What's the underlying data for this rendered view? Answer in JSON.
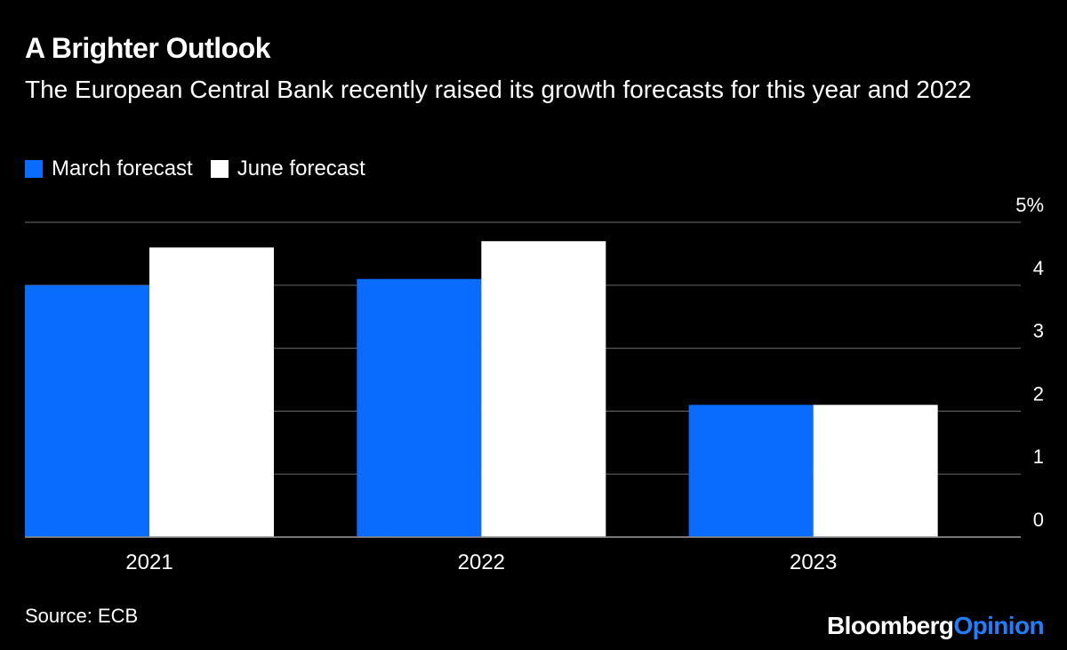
{
  "header": {
    "title": "A Brighter Outlook",
    "subtitle": "The European Central Bank recently raised its growth forecasts for this year and 2022"
  },
  "footer": {
    "source": "Source: ECB",
    "brand_part1": "Bloomberg",
    "brand_part2": "Opinion"
  },
  "colors": {
    "background": "#000000",
    "march": "#0a6cff",
    "june": "#ffffff",
    "grid": "#5a5a5a",
    "brand_accent": "#1f80ff"
  },
  "chart_data": {
    "type": "bar",
    "categories": [
      "2021",
      "2022",
      "2023"
    ],
    "series": [
      {
        "name": "March forecast",
        "values": [
          4.0,
          4.1,
          2.1
        ]
      },
      {
        "name": "June forecast",
        "values": [
          4.6,
          4.7,
          2.1
        ]
      }
    ],
    "ylim": [
      0,
      5
    ],
    "yticks": [
      0,
      1,
      2,
      3,
      4,
      5
    ],
    "ytick_labels": [
      "0",
      "1",
      "2",
      "3",
      "4",
      "5%"
    ],
    "grid": true,
    "legend_position": "top-left",
    "y_axis_side": "right"
  }
}
